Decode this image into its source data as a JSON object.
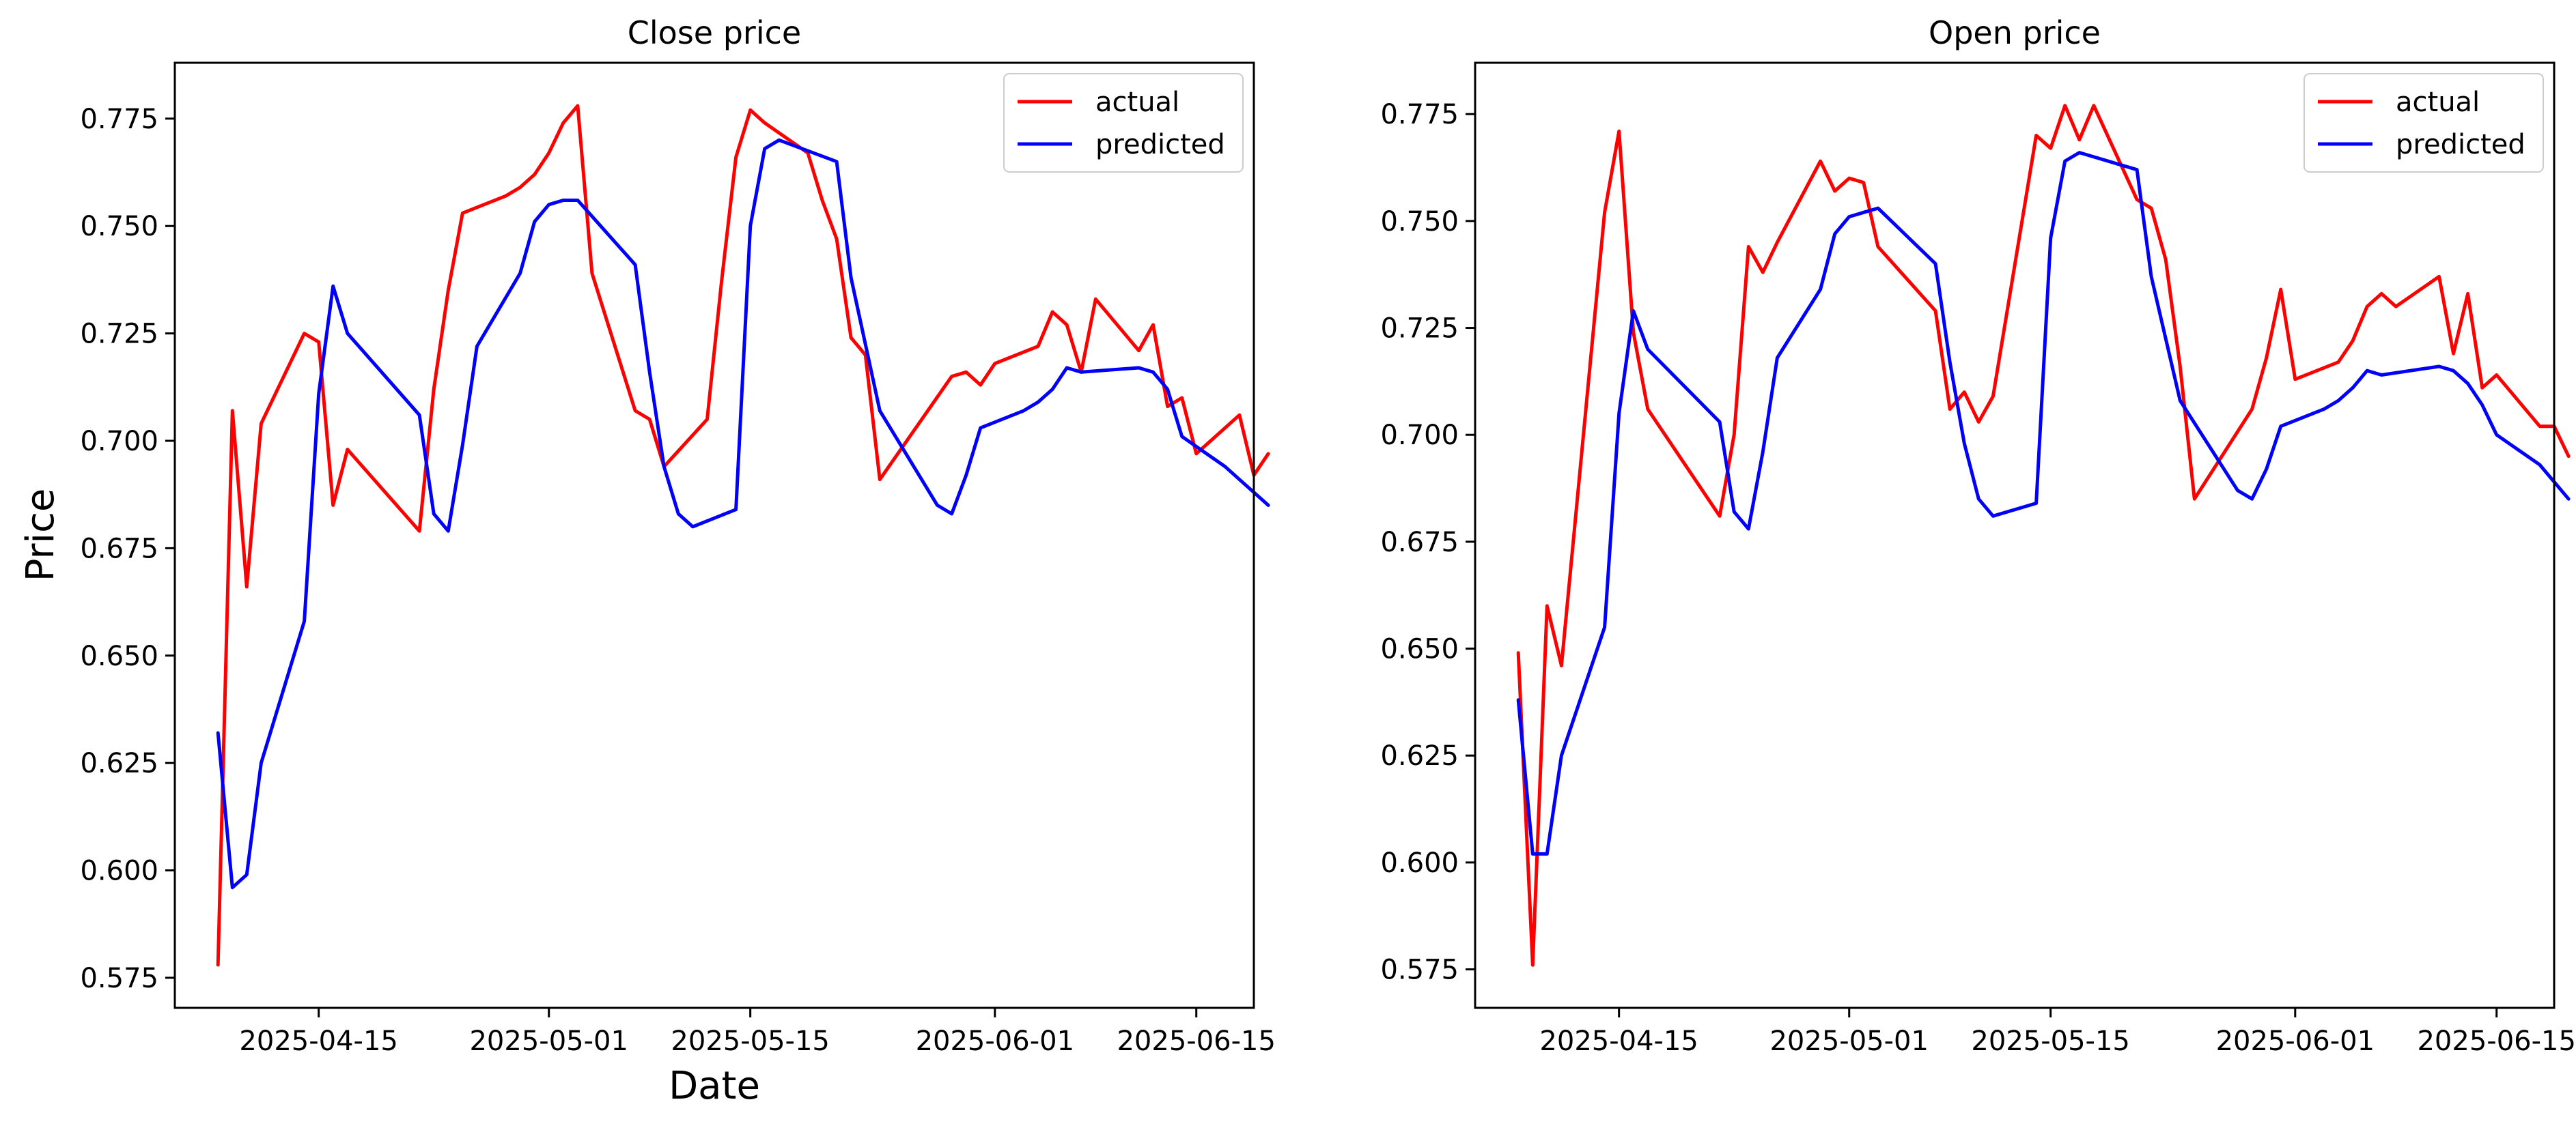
{
  "chart_data": [
    {
      "type": "line",
      "title": "Close price",
      "xlabel": "Date",
      "ylabel": "Price",
      "xlim": [
        "2025-04-05",
        "2025-06-19"
      ],
      "ylim": [
        0.568,
        0.788
      ],
      "x_ticks": [
        "2025-04-15",
        "2025-05-01",
        "2025-05-15",
        "2025-06-01",
        "2025-06-15"
      ],
      "y_ticks": [
        "0.575",
        "0.600",
        "0.625",
        "0.650",
        "0.675",
        "0.700",
        "0.725",
        "0.750",
        "0.775"
      ],
      "grid": false,
      "legend_position": "top-right",
      "series": [
        {
          "name": "actual",
          "color": "#ff0000",
          "points": [
            [
              "2025-04-08",
              0.578
            ],
            [
              "2025-04-09",
              0.707
            ],
            [
              "2025-04-10",
              0.666
            ],
            [
              "2025-04-11",
              0.704
            ],
            [
              "2025-04-14",
              0.725
            ],
            [
              "2025-04-15",
              0.723
            ],
            [
              "2025-04-16",
              0.685
            ],
            [
              "2025-04-17",
              0.698
            ],
            [
              "2025-04-22",
              0.679
            ],
            [
              "2025-04-23",
              0.712
            ],
            [
              "2025-04-24",
              0.735
            ],
            [
              "2025-04-25",
              0.753
            ],
            [
              "2025-04-28",
              0.757
            ],
            [
              "2025-04-29",
              0.759
            ],
            [
              "2025-04-30",
              0.762
            ],
            [
              "2025-05-01",
              0.767
            ],
            [
              "2025-05-02",
              0.774
            ],
            [
              "2025-05-03",
              0.778
            ],
            [
              "2025-05-04",
              0.739
            ],
            [
              "2025-05-07",
              0.707
            ],
            [
              "2025-05-08",
              0.705
            ],
            [
              "2025-05-09",
              0.694
            ],
            [
              "2025-05-12",
              0.705
            ],
            [
              "2025-05-13",
              0.737
            ],
            [
              "2025-05-14",
              0.766
            ],
            [
              "2025-05-15",
              0.777
            ],
            [
              "2025-05-16",
              0.774
            ],
            [
              "2025-05-19",
              0.767
            ],
            [
              "2025-05-20",
              0.756
            ],
            [
              "2025-05-21",
              0.747
            ],
            [
              "2025-05-22",
              0.724
            ],
            [
              "2025-05-23",
              0.72
            ],
            [
              "2025-05-24",
              0.691
            ],
            [
              "2025-05-29",
              0.715
            ],
            [
              "2025-05-30",
              0.716
            ],
            [
              "2025-05-31",
              0.713
            ],
            [
              "2025-06-01",
              0.718
            ],
            [
              "2025-06-04",
              0.722
            ],
            [
              "2025-06-05",
              0.73
            ],
            [
              "2025-06-06",
              0.727
            ],
            [
              "2025-06-07",
              0.716
            ],
            [
              "2025-06-08",
              0.733
            ],
            [
              "2025-06-11",
              0.721
            ],
            [
              "2025-06-12",
              0.727
            ],
            [
              "2025-06-13",
              0.708
            ],
            [
              "2025-06-14",
              0.71
            ],
            [
              "2025-06-15",
              0.697
            ],
            [
              "2025-06-18",
              0.706
            ],
            [
              "2025-06-19",
              0.692
            ],
            [
              "2025-06-20",
              0.697
            ]
          ]
        },
        {
          "name": "predicted",
          "color": "#0000ff",
          "points": [
            [
              "2025-04-08",
              0.632
            ],
            [
              "2025-04-09",
              0.596
            ],
            [
              "2025-04-10",
              0.599
            ],
            [
              "2025-04-11",
              0.625
            ],
            [
              "2025-04-14",
              0.658
            ],
            [
              "2025-04-15",
              0.711
            ],
            [
              "2025-04-16",
              0.736
            ],
            [
              "2025-04-17",
              0.725
            ],
            [
              "2025-04-22",
              0.706
            ],
            [
              "2025-04-23",
              0.683
            ],
            [
              "2025-04-24",
              0.679
            ],
            [
              "2025-04-25",
              0.699
            ],
            [
              "2025-04-26",
              0.722
            ],
            [
              "2025-04-29",
              0.739
            ],
            [
              "2025-04-30",
              0.751
            ],
            [
              "2025-05-01",
              0.755
            ],
            [
              "2025-05-02",
              0.756
            ],
            [
              "2025-05-03",
              0.756
            ],
            [
              "2025-05-07",
              0.741
            ],
            [
              "2025-05-08",
              0.716
            ],
            [
              "2025-05-09",
              0.694
            ],
            [
              "2025-05-10",
              0.683
            ],
            [
              "2025-05-11",
              0.68
            ],
            [
              "2025-05-14",
              0.684
            ],
            [
              "2025-05-15",
              0.75
            ],
            [
              "2025-05-16",
              0.768
            ],
            [
              "2025-05-17",
              0.77
            ],
            [
              "2025-05-21",
              0.765
            ],
            [
              "2025-05-22",
              0.738
            ],
            [
              "2025-05-24",
              0.707
            ],
            [
              "2025-05-28",
              0.685
            ],
            [
              "2025-05-29",
              0.683
            ],
            [
              "2025-05-30",
              0.692
            ],
            [
              "2025-05-31",
              0.703
            ],
            [
              "2025-06-03",
              0.707
            ],
            [
              "2025-06-04",
              0.709
            ],
            [
              "2025-06-05",
              0.712
            ],
            [
              "2025-06-06",
              0.717
            ],
            [
              "2025-06-07",
              0.716
            ],
            [
              "2025-06-11",
              0.717
            ],
            [
              "2025-06-12",
              0.716
            ],
            [
              "2025-06-13",
              0.712
            ],
            [
              "2025-06-14",
              0.701
            ],
            [
              "2025-06-17",
              0.694
            ],
            [
              "2025-06-18",
              0.691
            ],
            [
              "2025-06-20",
              0.685
            ]
          ]
        }
      ]
    },
    {
      "type": "line",
      "title": "Open price",
      "xlabel": "",
      "ylabel": "",
      "xlim": [
        "2025-04-05",
        "2025-06-19"
      ],
      "ylim": [
        0.566,
        0.787
      ],
      "x_ticks": [
        "2025-04-15",
        "2025-05-01",
        "2025-05-15",
        "2025-06-01",
        "2025-06-15"
      ],
      "y_ticks": [
        "0.575",
        "0.600",
        "0.625",
        "0.650",
        "0.675",
        "0.700",
        "0.725",
        "0.750",
        "0.775"
      ],
      "grid": false,
      "legend_position": "top-right",
      "series": [
        {
          "name": "actual",
          "color": "#ff0000",
          "points": [
            [
              "2025-04-08",
              0.649
            ],
            [
              "2025-04-09",
              0.576
            ],
            [
              "2025-04-10",
              0.66
            ],
            [
              "2025-04-11",
              0.646
            ],
            [
              "2025-04-14",
              0.752
            ],
            [
              "2025-04-15",
              0.771
            ],
            [
              "2025-04-16",
              0.724
            ],
            [
              "2025-04-17",
              0.706
            ],
            [
              "2025-04-22",
              0.681
            ],
            [
              "2025-04-23",
              0.7
            ],
            [
              "2025-04-24",
              0.744
            ],
            [
              "2025-04-25",
              0.738
            ],
            [
              "2025-04-26",
              0.745
            ],
            [
              "2025-04-29",
              0.764
            ],
            [
              "2025-04-30",
              0.757
            ],
            [
              "2025-05-01",
              0.76
            ],
            [
              "2025-05-02",
              0.759
            ],
            [
              "2025-05-03",
              0.744
            ],
            [
              "2025-05-07",
              0.729
            ],
            [
              "2025-05-08",
              0.706
            ],
            [
              "2025-05-09",
              0.71
            ],
            [
              "2025-05-10",
              0.703
            ],
            [
              "2025-05-11",
              0.709
            ],
            [
              "2025-05-14",
              0.77
            ],
            [
              "2025-05-15",
              0.767
            ],
            [
              "2025-05-16",
              0.777
            ],
            [
              "2025-05-17",
              0.769
            ],
            [
              "2025-05-18",
              0.777
            ],
            [
              "2025-05-21",
              0.755
            ],
            [
              "2025-05-22",
              0.753
            ],
            [
              "2025-05-23",
              0.741
            ],
            [
              "2025-05-24",
              0.716
            ],
            [
              "2025-05-25",
              0.685
            ],
            [
              "2025-05-29",
              0.706
            ],
            [
              "2025-05-30",
              0.718
            ],
            [
              "2025-05-31",
              0.734
            ],
            [
              "2025-06-01",
              0.713
            ],
            [
              "2025-06-04",
              0.717
            ],
            [
              "2025-06-05",
              0.722
            ],
            [
              "2025-06-06",
              0.73
            ],
            [
              "2025-06-07",
              0.733
            ],
            [
              "2025-06-08",
              0.73
            ],
            [
              "2025-06-11",
              0.737
            ],
            [
              "2025-06-12",
              0.719
            ],
            [
              "2025-06-13",
              0.733
            ],
            [
              "2025-06-14",
              0.711
            ],
            [
              "2025-06-15",
              0.714
            ],
            [
              "2025-06-18",
              0.702
            ],
            [
              "2025-06-19",
              0.702
            ],
            [
              "2025-06-20",
              0.695
            ]
          ]
        },
        {
          "name": "predicted",
          "color": "#0000ff",
          "points": [
            [
              "2025-04-08",
              0.638
            ],
            [
              "2025-04-09",
              0.602
            ],
            [
              "2025-04-10",
              0.602
            ],
            [
              "2025-04-11",
              0.625
            ],
            [
              "2025-04-14",
              0.655
            ],
            [
              "2025-04-15",
              0.705
            ],
            [
              "2025-04-16",
              0.729
            ],
            [
              "2025-04-17",
              0.72
            ],
            [
              "2025-04-22",
              0.703
            ],
            [
              "2025-04-23",
              0.682
            ],
            [
              "2025-04-24",
              0.678
            ],
            [
              "2025-04-25",
              0.696
            ],
            [
              "2025-04-26",
              0.718
            ],
            [
              "2025-04-29",
              0.734
            ],
            [
              "2025-04-30",
              0.747
            ],
            [
              "2025-05-01",
              0.751
            ],
            [
              "2025-05-02",
              0.752
            ],
            [
              "2025-05-03",
              0.753
            ],
            [
              "2025-05-07",
              0.74
            ],
            [
              "2025-05-08",
              0.717
            ],
            [
              "2025-05-09",
              0.698
            ],
            [
              "2025-05-10",
              0.685
            ],
            [
              "2025-05-11",
              0.681
            ],
            [
              "2025-05-14",
              0.684
            ],
            [
              "2025-05-15",
              0.746
            ],
            [
              "2025-05-16",
              0.764
            ],
            [
              "2025-05-17",
              0.766
            ],
            [
              "2025-05-21",
              0.762
            ],
            [
              "2025-05-22",
              0.737
            ],
            [
              "2025-05-24",
              0.708
            ],
            [
              "2025-05-28",
              0.687
            ],
            [
              "2025-05-29",
              0.685
            ],
            [
              "2025-05-30",
              0.692
            ],
            [
              "2025-05-31",
              0.702
            ],
            [
              "2025-06-03",
              0.706
            ],
            [
              "2025-06-04",
              0.708
            ],
            [
              "2025-06-05",
              0.711
            ],
            [
              "2025-06-06",
              0.715
            ],
            [
              "2025-06-07",
              0.714
            ],
            [
              "2025-06-11",
              0.716
            ],
            [
              "2025-06-12",
              0.715
            ],
            [
              "2025-06-13",
              0.712
            ],
            [
              "2025-06-14",
              0.707
            ],
            [
              "2025-06-15",
              0.7
            ],
            [
              "2025-06-18",
              0.693
            ],
            [
              "2025-06-20",
              0.685
            ]
          ]
        }
      ]
    }
  ]
}
